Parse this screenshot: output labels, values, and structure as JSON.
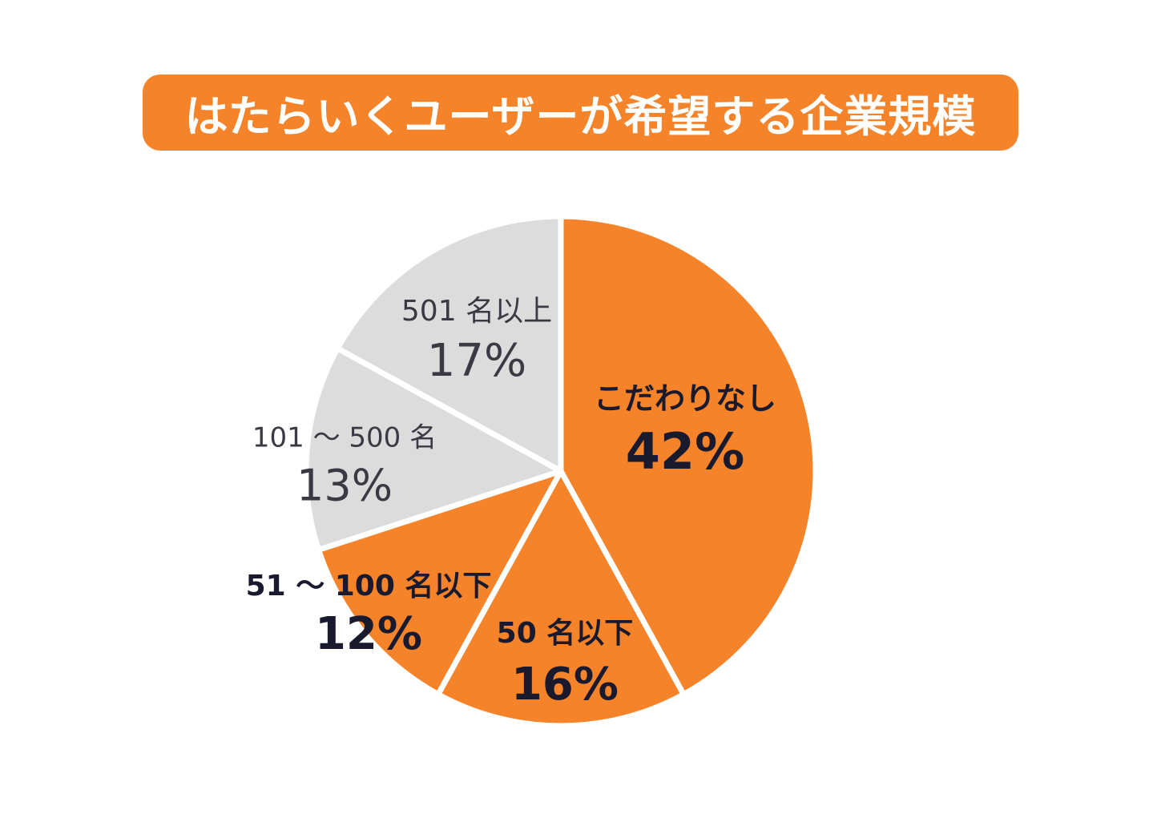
{
  "title": "はたらいくユーザーが希望する企業規模",
  "colors": {
    "accent": "#F5832A",
    "gray": "#DCDCDD",
    "separator": "#FFFFFF",
    "text_dark": "#1A1A2E",
    "text_light": "#3A3A44",
    "title_text": "#FFFFFF"
  },
  "chart_data": {
    "type": "pie",
    "title": "はたらいくユーザーが希望する企業規模",
    "start": "12 o'clock",
    "direction": "clockwise",
    "slices": [
      {
        "name": "こだわりなし",
        "value": 42,
        "percent_label": "42%",
        "color": "#F5832A",
        "emphasis": true
      },
      {
        "name": "50 名以下",
        "value": 16,
        "percent_label": "16%",
        "color": "#F5832A",
        "emphasis": true
      },
      {
        "name": "51 ～ 100 名以下",
        "value": 12,
        "percent_label": "12%",
        "color": "#F5832A",
        "emphasis": true
      },
      {
        "name": "101 ～ 500 名",
        "value": 13,
        "percent_label": "13%",
        "color": "#DCDCDD",
        "emphasis": false
      },
      {
        "name": "501 名以上",
        "value": 17,
        "percent_label": "17%",
        "color": "#DCDCDD",
        "emphasis": false
      }
    ]
  }
}
